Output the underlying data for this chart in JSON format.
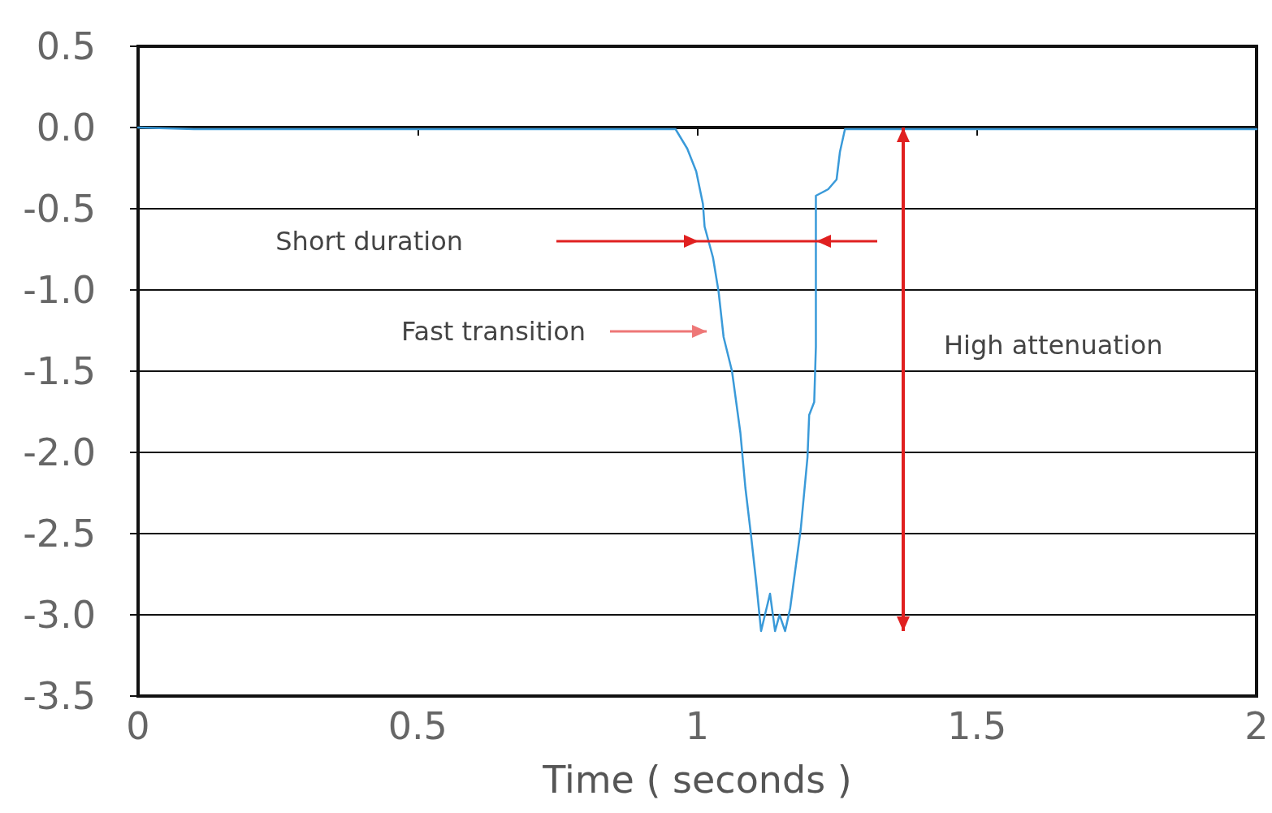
{
  "chart_data": {
    "type": "line",
    "xlabel": "Time ( seconds )",
    "xlim": [
      0,
      2
    ],
    "xticks": [
      0,
      0.5,
      1,
      1.5,
      2
    ],
    "ylim": [
      -3.5,
      0.5
    ],
    "yticks": [
      {
        "value": -3.5,
        "label": "-3.5"
      },
      {
        "value": -3,
        "label": "-3.0"
      },
      {
        "value": -2.5,
        "label": "-2.5"
      },
      {
        "value": -2,
        "label": "-2.0"
      },
      {
        "value": -1.5,
        "label": "-1.5"
      },
      {
        "value": -1,
        "label": "-1.0"
      },
      {
        "value": -0.5,
        "label": "-0.5"
      },
      {
        "value": 0,
        "label": "0.0"
      },
      {
        "value": 0.5,
        "label": "0.5"
      }
    ],
    "grid": "y",
    "marker": "none",
    "line_style": "solid",
    "series": [
      {
        "color": "#3a9ad9",
        "x": [
          0,
          0.1,
          0.2,
          0.3,
          0.4,
          0.5,
          0.6,
          0.7,
          0.8,
          0.9,
          0.961,
          0.982,
          0.998,
          1.01,
          1.013,
          1.028,
          1.038,
          1.047,
          1.062,
          1.077,
          1.086,
          1.096,
          1.105,
          1.114,
          1.13,
          1.139,
          1.147,
          1.157,
          1.166,
          1.185,
          1.197,
          1.2,
          1.209,
          1.212,
          1.212,
          1.234,
          1.249,
          1.255,
          1.264,
          1.3,
          1.4,
          1.5,
          1.6,
          1.7,
          1.8,
          1.9,
          2
        ],
        "values": [
          0,
          -0.01,
          -0.01,
          -0.01,
          -0.01,
          -0.01,
          -0.01,
          -0.01,
          -0.01,
          -0.01,
          -0.01,
          -0.13,
          -0.27,
          -0.47,
          -0.61,
          -0.8,
          -1.01,
          -1.29,
          -1.5,
          -1.88,
          -2.22,
          -2.51,
          -2.79,
          -3.1,
          -2.87,
          -3.1,
          -3.0,
          -3.1,
          -2.96,
          -2.47,
          -2.03,
          -1.77,
          -1.69,
          -1.35,
          -0.42,
          -0.38,
          -0.32,
          -0.15,
          -0.01,
          -0.01,
          -0.01,
          -0.01,
          -0.01,
          -0.01,
          -0.01,
          -0.01,
          -0.01
        ]
      }
    ],
    "annotations": [
      "Short duration",
      "Fast transition",
      "High attenuation"
    ]
  }
}
